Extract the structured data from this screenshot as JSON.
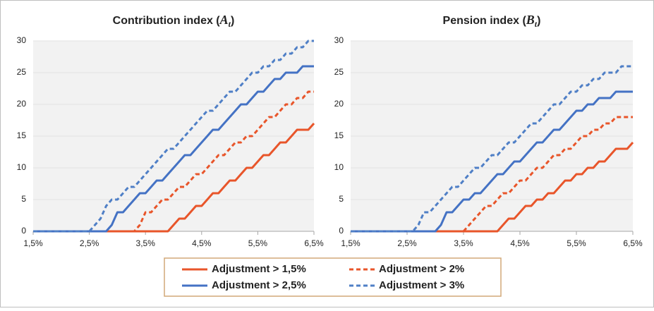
{
  "chart_data": [
    {
      "type": "line",
      "title": [
        "Contribution index (",
        "A",
        "t",
        ")"
      ],
      "x": [
        1.5,
        1.6,
        1.7,
        1.8,
        1.9,
        2.0,
        2.1,
        2.2,
        2.3,
        2.4,
        2.5,
        2.6,
        2.7,
        2.8,
        2.9,
        3.0,
        3.1,
        3.2,
        3.3,
        3.4,
        3.5,
        3.6,
        3.7,
        3.8,
        3.9,
        4.0,
        4.1,
        4.2,
        4.3,
        4.4,
        4.5,
        4.6,
        4.7,
        4.8,
        4.9,
        5.0,
        5.1,
        5.2,
        5.3,
        5.4,
        5.5,
        5.6,
        5.7,
        5.8,
        5.9,
        6.0,
        6.1,
        6.2,
        6.3,
        6.4,
        6.5
      ],
      "xlim": [
        1.5,
        6.5
      ],
      "xticks": [
        {
          "value": 1.5,
          "label": "1,5%"
        },
        {
          "value": 2.5,
          "label": "2,5%"
        },
        {
          "value": 3.5,
          "label": "3,5%"
        },
        {
          "value": 4.5,
          "label": "4,5%"
        },
        {
          "value": 5.5,
          "label": "5,5%"
        },
        {
          "value": 6.5,
          "label": "6,5%"
        }
      ],
      "ylim": [
        0,
        30
      ],
      "yticks": [
        0,
        5,
        10,
        15,
        20,
        25,
        30
      ],
      "series": [
        {
          "name": "Adjustment > 1,5%",
          "color": "#e8552a",
          "dashed": false,
          "values": [
            0,
            0,
            0,
            0,
            0,
            0,
            0,
            0,
            0,
            0,
            0,
            0,
            0,
            0,
            0,
            0,
            0,
            0,
            0,
            0,
            0,
            0,
            0,
            0,
            0,
            1,
            2,
            2,
            3,
            4,
            4,
            5,
            6,
            6,
            7,
            8,
            8,
            9,
            10,
            10,
            11,
            12,
            12,
            13,
            14,
            14,
            15,
            16,
            16,
            16,
            17
          ]
        },
        {
          "name": "Adjustment > 2%",
          "color": "#e8552a",
          "dashed": true,
          "values": [
            0,
            0,
            0,
            0,
            0,
            0,
            0,
            0,
            0,
            0,
            0,
            0,
            0,
            0,
            0,
            0,
            0,
            0,
            0,
            1,
            3,
            3,
            4,
            5,
            5,
            6,
            7,
            7,
            8,
            9,
            9,
            10,
            11,
            12,
            12,
            13,
            14,
            14,
            15,
            15,
            16,
            17,
            18,
            18,
            19,
            20,
            20,
            21,
            21,
            22,
            22
          ]
        },
        {
          "name": "Adjustment > 2,5%",
          "color": "#4472c4",
          "dashed": false,
          "values": [
            0,
            0,
            0,
            0,
            0,
            0,
            0,
            0,
            0,
            0,
            0,
            0,
            0,
            0,
            1,
            3,
            3,
            4,
            5,
            6,
            6,
            7,
            8,
            8,
            9,
            10,
            11,
            12,
            12,
            13,
            14,
            15,
            16,
            16,
            17,
            18,
            19,
            20,
            20,
            21,
            22,
            22,
            23,
            24,
            24,
            25,
            25,
            25,
            26,
            26,
            26
          ]
        },
        {
          "name": "Adjustment > 3%",
          "color": "#4f7fc6",
          "dashed": true,
          "values": [
            0,
            0,
            0,
            0,
            0,
            0,
            0,
            0,
            0,
            0,
            0,
            1,
            2,
            4,
            5,
            5,
            6,
            7,
            7,
            8,
            9,
            10,
            11,
            12,
            13,
            13,
            14,
            15,
            16,
            17,
            18,
            19,
            19,
            20,
            21,
            22,
            22,
            23,
            24,
            25,
            25,
            26,
            26,
            27,
            27,
            28,
            28,
            29,
            29,
            30,
            30
          ]
        }
      ]
    },
    {
      "type": "line",
      "title": [
        "Pension index (",
        "B",
        "t",
        ")"
      ],
      "x": [
        1.5,
        1.6,
        1.7,
        1.8,
        1.9,
        2.0,
        2.1,
        2.2,
        2.3,
        2.4,
        2.5,
        2.6,
        2.7,
        2.8,
        2.9,
        3.0,
        3.1,
        3.2,
        3.3,
        3.4,
        3.5,
        3.6,
        3.7,
        3.8,
        3.9,
        4.0,
        4.1,
        4.2,
        4.3,
        4.4,
        4.5,
        4.6,
        4.7,
        4.8,
        4.9,
        5.0,
        5.1,
        5.2,
        5.3,
        5.4,
        5.5,
        5.6,
        5.7,
        5.8,
        5.9,
        6.0,
        6.1,
        6.2,
        6.3,
        6.4,
        6.5
      ],
      "xlim": [
        1.5,
        6.5
      ],
      "xticks": [
        {
          "value": 1.5,
          "label": "1,5%"
        },
        {
          "value": 2.5,
          "label": "2,5%"
        },
        {
          "value": 3.5,
          "label": "3,5%"
        },
        {
          "value": 4.5,
          "label": "4,5%"
        },
        {
          "value": 5.5,
          "label": "5,5%"
        },
        {
          "value": 6.5,
          "label": "6,5%"
        }
      ],
      "ylim": [
        0,
        30
      ],
      "yticks": [
        0,
        5,
        10,
        15,
        20,
        25,
        30
      ],
      "series": [
        {
          "color": "#e8552a",
          "dashed": false,
          "values": [
            0,
            0,
            0,
            0,
            0,
            0,
            0,
            0,
            0,
            0,
            0,
            0,
            0,
            0,
            0,
            0,
            0,
            0,
            0,
            0,
            0,
            0,
            0,
            0,
            0,
            0,
            0,
            1,
            2,
            2,
            3,
            4,
            4,
            5,
            5,
            6,
            6,
            7,
            8,
            8,
            9,
            9,
            10,
            10,
            11,
            11,
            12,
            13,
            13,
            13,
            14
          ]
        },
        {
          "color": "#e8552a",
          "dashed": true,
          "values": [
            0,
            0,
            0,
            0,
            0,
            0,
            0,
            0,
            0,
            0,
            0,
            0,
            0,
            0,
            0,
            0,
            0,
            0,
            0,
            0,
            0,
            1,
            2,
            3,
            4,
            4,
            5,
            6,
            6,
            7,
            8,
            8,
            9,
            10,
            10,
            11,
            12,
            12,
            13,
            13,
            14,
            15,
            15,
            16,
            16,
            17,
            17,
            18,
            18,
            18,
            18
          ]
        },
        {
          "color": "#4472c4",
          "dashed": false,
          "values": [
            0,
            0,
            0,
            0,
            0,
            0,
            0,
            0,
            0,
            0,
            0,
            0,
            0,
            0,
            0,
            0,
            1,
            3,
            3,
            4,
            5,
            5,
            6,
            6,
            7,
            8,
            9,
            9,
            10,
            11,
            11,
            12,
            13,
            14,
            14,
            15,
            16,
            16,
            17,
            18,
            19,
            19,
            20,
            20,
            21,
            21,
            21,
            22,
            22,
            22,
            22
          ]
        },
        {
          "color": "#4f7fc6",
          "dashed": true,
          "values": [
            0,
            0,
            0,
            0,
            0,
            0,
            0,
            0,
            0,
            0,
            0,
            0,
            1,
            3,
            3,
            4,
            5,
            6,
            7,
            7,
            8,
            9,
            10,
            10,
            11,
            12,
            12,
            13,
            14,
            14,
            15,
            16,
            17,
            17,
            18,
            19,
            20,
            20,
            21,
            22,
            22,
            23,
            23,
            24,
            24,
            25,
            25,
            25,
            26,
            26,
            26
          ]
        }
      ]
    }
  ]
}
